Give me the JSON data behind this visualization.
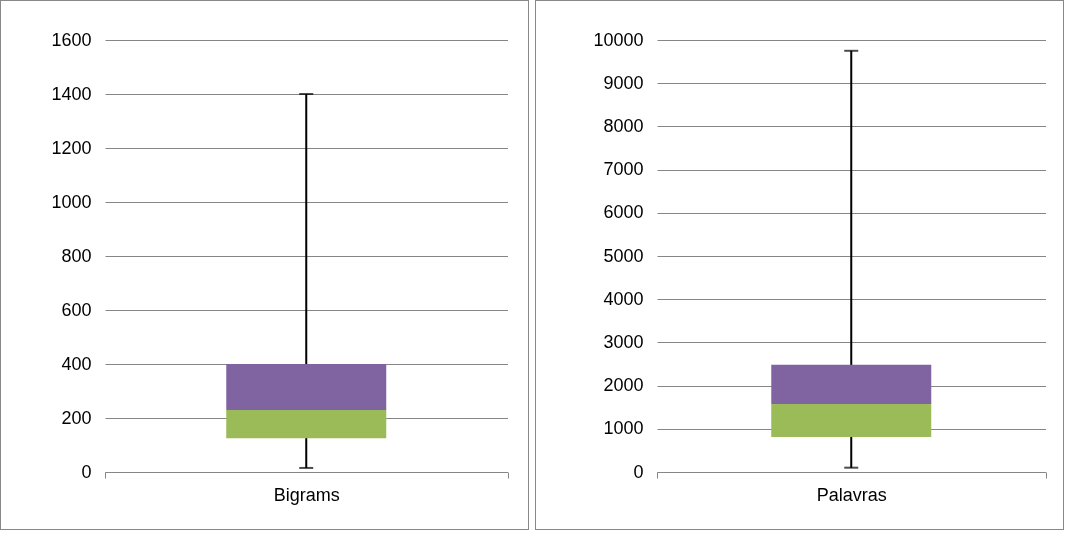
{
  "chart_data": [
    {
      "type": "box",
      "categories": [
        "Bigrams"
      ],
      "series": [
        {
          "color": "#9bbb59",
          "boxes": [
            {
              "low": 15,
              "q1": 125,
              "median": 230,
              "q3": 400,
              "high": 1400
            }
          ]
        }
      ],
      "ylim": [
        0,
        1600
      ],
      "yticks": [
        0,
        200,
        400,
        600,
        800,
        1000,
        1200,
        1400,
        1600
      ],
      "grid": "y"
    },
    {
      "type": "box",
      "categories": [
        "Palavras"
      ],
      "series": [
        {
          "color": "#9bbb59",
          "boxes": [
            {
              "low": 100,
              "q1": 810,
              "median": 1575,
              "q3": 2480,
              "high": 9750
            }
          ]
        }
      ],
      "ylim": [
        0,
        10000
      ],
      "yticks": [
        0,
        1000,
        2000,
        3000,
        4000,
        5000,
        6000,
        7000,
        8000,
        9000,
        10000
      ],
      "grid": "y"
    }
  ]
}
